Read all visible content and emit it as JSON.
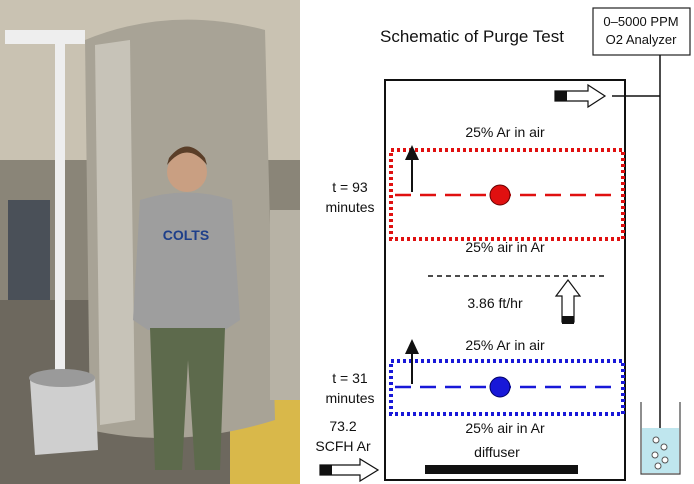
{
  "title": "Schematic of Purge Test",
  "analyzer": {
    "lines": [
      "0–5000 PPM",
      "O2 Analyzer"
    ]
  },
  "fronts": [
    {
      "time": [
        "t = 93",
        "minutes"
      ],
      "above": "25% Ar in air",
      "below": "25% air in Ar"
    },
    {
      "time": [
        "t = 31",
        "minutes"
      ],
      "above": "25% Ar in air",
      "below": "25% air in Ar"
    }
  ],
  "velocity": "3.86 ft/hr",
  "inflow": [
    "73.2",
    "SCFH Ar"
  ],
  "diffuser": "diffuser"
}
